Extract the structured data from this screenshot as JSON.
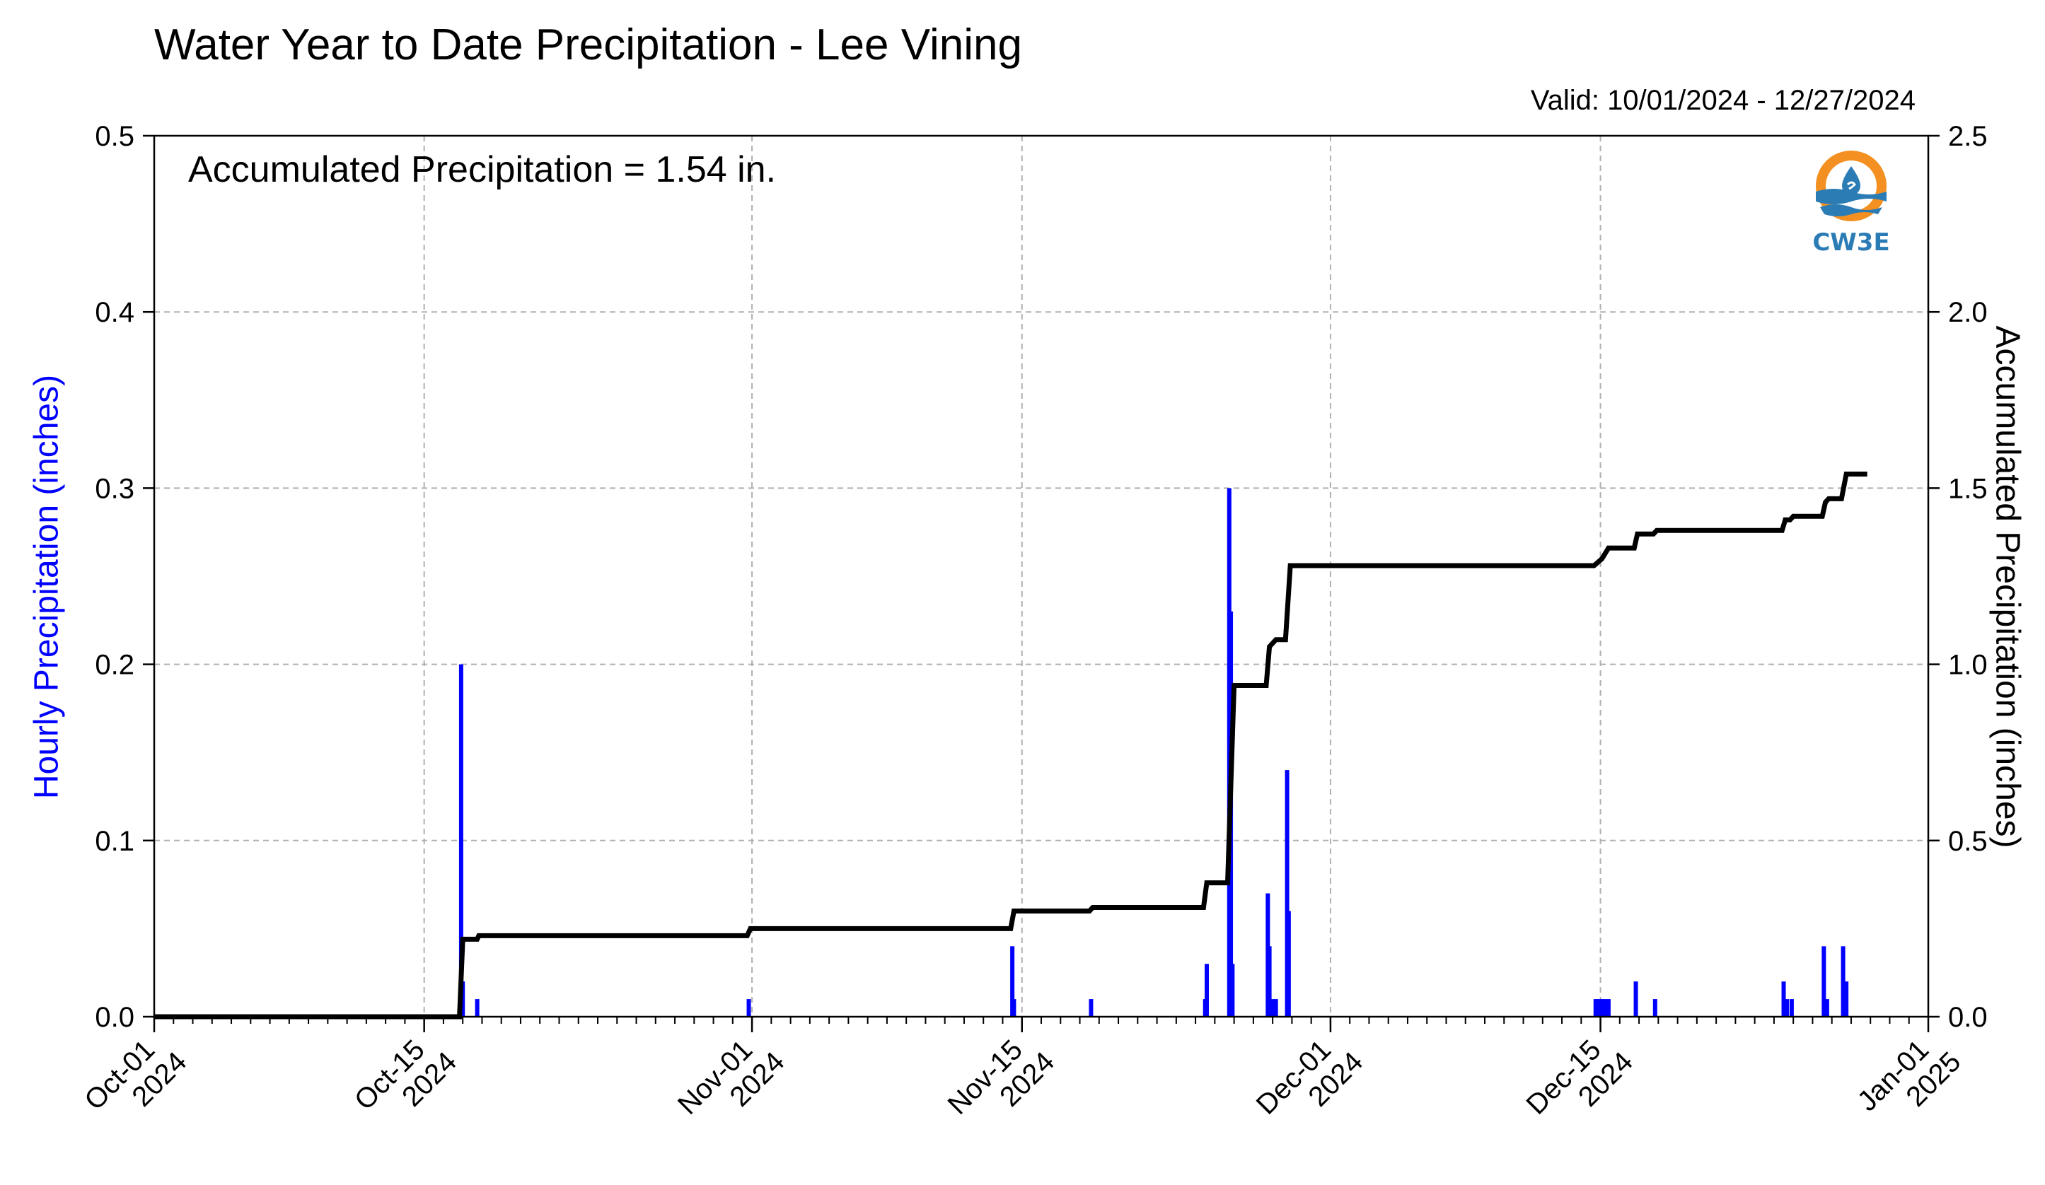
{
  "chart_data": {
    "type": "bar",
    "title": "Water Year to Date Precipitation - Lee Vining",
    "valid": "Valid: 10/01/2024 - 12/27/2024",
    "annotation": "Accumulated Precipitation = 1.54 in.",
    "ylabel_left": "Hourly Precipitation (inches)",
    "ylabel_right": "Accumulated Precipitation (inches)",
    "xlim": [
      "2024-10-01",
      "2025-01-01"
    ],
    "ylim_left": [
      0,
      0.5
    ],
    "ylim_right": [
      0,
      2.5
    ],
    "grid": true,
    "yticks_left": [
      "0.0",
      "0.1",
      "0.2",
      "0.3",
      "0.4",
      "0.5"
    ],
    "yticks_right": [
      "0.0",
      "0.5",
      "1.0",
      "1.5",
      "2.0",
      "2.5"
    ],
    "xticks": [
      {
        "date": "2024-10-01",
        "line1": "Oct-01",
        "line2": "2024"
      },
      {
        "date": "2024-10-15",
        "line1": "Oct-15",
        "line2": "2024"
      },
      {
        "date": "2024-11-01",
        "line1": "Nov-01",
        "line2": "2024"
      },
      {
        "date": "2024-11-15",
        "line1": "Nov-15",
        "line2": "2024"
      },
      {
        "date": "2024-12-01",
        "line1": "Dec-01",
        "line2": "2024"
      },
      {
        "date": "2024-12-15",
        "line1": "Dec-15",
        "line2": "2024"
      },
      {
        "date": "2025-01-01",
        "line1": "Jan-01",
        "line2": "2025"
      }
    ],
    "series": [
      {
        "name": "Hourly Precipitation",
        "color": "#0000ff",
        "axis": "left",
        "points": [
          [
            "2024-10-16T22:00",
            0.2
          ],
          [
            "2024-10-17T00:00",
            0.02
          ],
          [
            "2024-10-17T18:00",
            0.01
          ],
          [
            "2024-10-31T20:00",
            0.01
          ],
          [
            "2024-11-14T12:00",
            0.04
          ],
          [
            "2024-11-14T14:00",
            0.01
          ],
          [
            "2024-11-18T14:00",
            0.01
          ],
          [
            "2024-11-24T12:00",
            0.01
          ],
          [
            "2024-11-24T14:00",
            0.03
          ],
          [
            "2024-11-25T18:00",
            0.3
          ],
          [
            "2024-11-25T20:00",
            0.23
          ],
          [
            "2024-11-25T22:00",
            0.03
          ],
          [
            "2024-11-27T18:00",
            0.07
          ],
          [
            "2024-11-27T20:00",
            0.04
          ],
          [
            "2024-11-28T00:00",
            0.01
          ],
          [
            "2024-11-28T04:00",
            0.01
          ],
          [
            "2024-11-28T18:00",
            0.14
          ],
          [
            "2024-11-28T20:00",
            0.06
          ],
          [
            "2024-12-14T18:00",
            0.01
          ],
          [
            "2024-12-14T22:00",
            0.01
          ],
          [
            "2024-12-15T02:00",
            0.01
          ],
          [
            "2024-12-15T06:00",
            0.01
          ],
          [
            "2024-12-15T10:00",
            0.01
          ],
          [
            "2024-12-16T20:00",
            0.02
          ],
          [
            "2024-12-17T20:00",
            0.01
          ],
          [
            "2024-12-24T12:00",
            0.02
          ],
          [
            "2024-12-24T16:00",
            0.01
          ],
          [
            "2024-12-24T22:00",
            0.01
          ],
          [
            "2024-12-26T14:00",
            0.04
          ],
          [
            "2024-12-26T18:00",
            0.01
          ],
          [
            "2024-12-27T14:00",
            0.04
          ],
          [
            "2024-12-27T18:00",
            0.02
          ]
        ]
      },
      {
        "name": "Accumulated Precipitation",
        "color": "#000000",
        "axis": "right",
        "points": [
          [
            "2024-10-01T00:00",
            0.0
          ],
          [
            "2024-10-16T20:00",
            0.0
          ],
          [
            "2024-10-17T00:00",
            0.22
          ],
          [
            "2024-10-17T18:00",
            0.22
          ],
          [
            "2024-10-17T20:00",
            0.23
          ],
          [
            "2024-10-31T18:00",
            0.23
          ],
          [
            "2024-10-31T22:00",
            0.25
          ],
          [
            "2024-11-14T10:00",
            0.25
          ],
          [
            "2024-11-14T14:00",
            0.3
          ],
          [
            "2024-11-18T12:00",
            0.3
          ],
          [
            "2024-11-18T16:00",
            0.31
          ],
          [
            "2024-11-24T10:00",
            0.31
          ],
          [
            "2024-11-24T14:00",
            0.38
          ],
          [
            "2024-11-25T16:00",
            0.38
          ],
          [
            "2024-11-26T00:00",
            0.94
          ],
          [
            "2024-11-27T16:00",
            0.94
          ],
          [
            "2024-11-27T20:00",
            1.05
          ],
          [
            "2024-11-28T04:00",
            1.07
          ],
          [
            "2024-11-28T16:00",
            1.07
          ],
          [
            "2024-11-28T22:00",
            1.28
          ],
          [
            "2024-12-14T16:00",
            1.28
          ],
          [
            "2024-12-15T02:00",
            1.3
          ],
          [
            "2024-12-15T10:00",
            1.33
          ],
          [
            "2024-12-16T18:00",
            1.33
          ],
          [
            "2024-12-16T22:00",
            1.37
          ],
          [
            "2024-12-17T18:00",
            1.37
          ],
          [
            "2024-12-17T22:00",
            1.38
          ],
          [
            "2024-12-24T10:00",
            1.38
          ],
          [
            "2024-12-24T14:00",
            1.41
          ],
          [
            "2024-12-24T20:00",
            1.41
          ],
          [
            "2024-12-25T00:00",
            1.42
          ],
          [
            "2024-12-26T12:00",
            1.42
          ],
          [
            "2024-12-26T16:00",
            1.46
          ],
          [
            "2024-12-26T20:00",
            1.47
          ],
          [
            "2024-12-27T12:00",
            1.47
          ],
          [
            "2024-12-27T18:00",
            1.54
          ],
          [
            "2024-12-28T20:00",
            1.54
          ]
        ]
      }
    ]
  },
  "logo": {
    "text": "CW3E",
    "colors": {
      "orange": "#f39021",
      "blue": "#2b7cb5"
    }
  }
}
